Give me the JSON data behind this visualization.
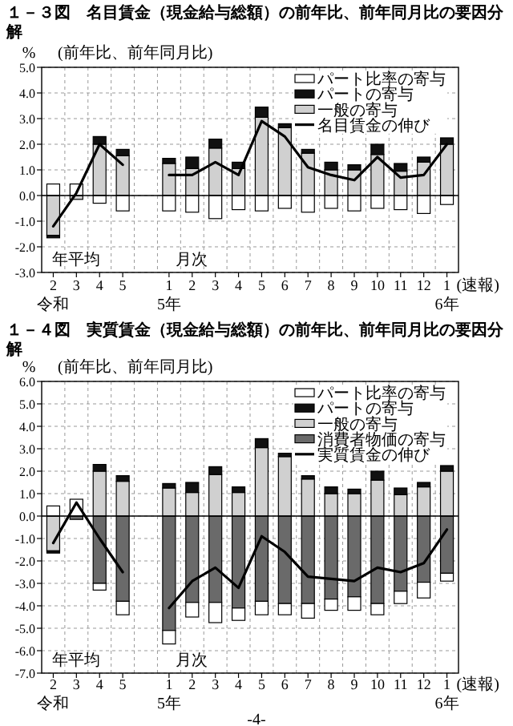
{
  "chart_data": [
    {
      "type": "bar",
      "title": "１－３図　名目賃金（現金給与総額）の前年比、前年同月比の要因分解",
      "subtitle": "(前年比、前年同月比)",
      "ylabel": "%",
      "categories": [
        "2\n令和",
        "3",
        "4",
        "5",
        null,
        "1\n5年",
        "2",
        "3",
        "4",
        "5",
        "6",
        "7",
        "8",
        "9",
        "10",
        "11",
        "12",
        "1\n6年"
      ],
      "stacked": true,
      "grid": true,
      "legend": "top right",
      "ylim": [
        -3,
        5
      ],
      "yticks": [
        {
          "value": -3,
          "label": "-3.0"
        },
        {
          "value": -2,
          "label": "-2.0"
        },
        {
          "value": -1,
          "label": "-1.0"
        },
        {
          "value": 0,
          "label": "0.0"
        },
        {
          "value": 1,
          "label": "1.0"
        },
        {
          "value": 2,
          "label": "2.0"
        },
        {
          "value": 3,
          "label": "3.0"
        },
        {
          "value": 4,
          "label": "4.0"
        },
        {
          "value": 5,
          "label": "5.0"
        }
      ],
      "annotations": [
        "年平均",
        "月次",
        "(速報)"
      ],
      "series": [
        {
          "name": "一般の寄与",
          "color": "#d0d0d0",
          "values": [
            -1.55,
            -0.15,
            2.0,
            1.55,
            null,
            1.25,
            1.05,
            1.85,
            1.05,
            3.05,
            2.65,
            1.65,
            1.0,
            1.0,
            1.6,
            0.95,
            1.3,
            2.0
          ]
        },
        {
          "name": "パートの寄与",
          "color": "#111111",
          "values": [
            -0.1,
            0,
            0.3,
            0.25,
            null,
            0.2,
            0.45,
            0.35,
            0.25,
            0.4,
            0.15,
            0.15,
            0.3,
            0.2,
            0.4,
            0.3,
            0.2,
            0.25
          ]
        },
        {
          "name": "パート比率の寄与",
          "color": "#ffffff",
          "values": [
            0.45,
            0.45,
            -0.3,
            -0.6,
            null,
            -0.6,
            -0.65,
            -0.9,
            -0.55,
            -0.6,
            -0.5,
            -0.65,
            -0.5,
            -0.6,
            -0.5,
            -0.55,
            -0.7,
            -0.35
          ]
        },
        {
          "name": "名目賃金の伸び",
          "type": "line",
          "color": "#000000",
          "values": [
            -1.2,
            0.1,
            2.0,
            1.2,
            null,
            0.8,
            0.8,
            1.3,
            0.8,
            2.9,
            2.3,
            1.1,
            0.8,
            0.6,
            1.5,
            0.7,
            0.8,
            2.0
          ]
        }
      ]
    },
    {
      "type": "bar",
      "title": "１－４図　実質賃金（現金給与総額）の前年比、前年同月比の要因分解",
      "subtitle": "(前年比、前年同月比)",
      "ylabel": "%",
      "categories": [
        "2\n令和",
        "3",
        "4",
        "5",
        null,
        "1\n5年",
        "2",
        "3",
        "4",
        "5",
        "6",
        "7",
        "8",
        "9",
        "10",
        "11",
        "12",
        "1\n6年"
      ],
      "stacked": true,
      "grid": true,
      "legend": "top right",
      "ylim": [
        -7,
        6
      ],
      "yticks": [
        {
          "value": -7,
          "label": "-7.0"
        },
        {
          "value": -6,
          "label": "-6.0"
        },
        {
          "value": -5,
          "label": "-5.0"
        },
        {
          "value": -4,
          "label": "-4.0"
        },
        {
          "value": -3,
          "label": "-3.0"
        },
        {
          "value": -2,
          "label": "-2.0"
        },
        {
          "value": -1,
          "label": "-1.0"
        },
        {
          "value": 0,
          "label": "0.0"
        },
        {
          "value": 1,
          "label": "1.0"
        },
        {
          "value": 2,
          "label": "2.0"
        },
        {
          "value": 3,
          "label": "3.0"
        },
        {
          "value": 4,
          "label": "4.0"
        },
        {
          "value": 5,
          "label": "5.0"
        },
        {
          "value": 6,
          "label": "6.0"
        }
      ],
      "annotations": [
        "年平均",
        "月次",
        "(速報)",
        "-4-"
      ],
      "series": [
        {
          "name": "消費者物価の寄与",
          "color": "#6a6a6a",
          "values": [
            0,
            -0.15,
            -3.0,
            -3.8,
            null,
            -5.1,
            -3.85,
            -3.85,
            -4.1,
            -3.8,
            -3.9,
            -3.9,
            -3.7,
            -3.6,
            -3.9,
            -3.35,
            -2.95,
            -2.55
          ]
        },
        {
          "name": "一般の寄与",
          "color": "#d0d0d0",
          "values": [
            -1.55,
            null,
            2.0,
            1.55,
            null,
            1.25,
            1.05,
            1.85,
            1.05,
            3.05,
            2.65,
            1.65,
            1.0,
            1.0,
            1.6,
            0.95,
            1.3,
            2.0
          ]
        },
        {
          "name": "パートの寄与",
          "color": "#111111",
          "values": [
            -0.1,
            0,
            0.3,
            0.25,
            null,
            0.2,
            0.45,
            0.35,
            0.25,
            0.4,
            0.15,
            0.15,
            0.3,
            0.2,
            0.4,
            0.3,
            0.2,
            0.25
          ]
        },
        {
          "name": "パート比率の寄与",
          "color": "#ffffff",
          "values": [
            0.45,
            0.75,
            -0.3,
            -0.6,
            null,
            -0.6,
            -0.65,
            -0.9,
            -0.55,
            -0.6,
            -0.5,
            -0.65,
            -0.5,
            -0.6,
            -0.5,
            -0.55,
            -0.7,
            -0.35
          ]
        },
        {
          "name": "実質賃金の伸び",
          "type": "line",
          "color": "#000000",
          "values": [
            -1.2,
            0.6,
            -1.0,
            -2.5,
            null,
            -4.1,
            -2.9,
            -2.3,
            -3.2,
            -0.9,
            -1.6,
            -2.7,
            -2.8,
            -2.9,
            -2.3,
            -2.5,
            -2.1,
            -0.6
          ]
        }
      ]
    }
  ]
}
